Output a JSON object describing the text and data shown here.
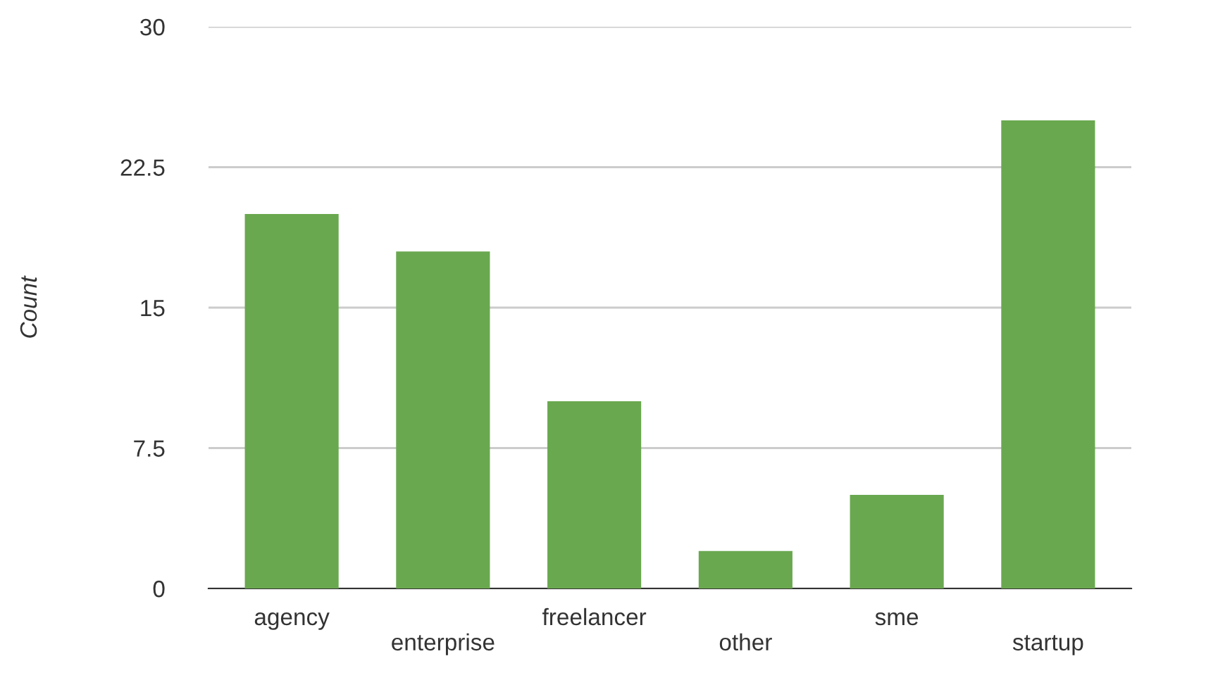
{
  "chart_data": {
    "type": "bar",
    "ylabel": "Count",
    "categories": [
      "agency",
      "enterprise",
      "freelancer",
      "other",
      "sme",
      "startup"
    ],
    "values": [
      20,
      18,
      10,
      2,
      5,
      25
    ],
    "color": "#6aa84f",
    "ylim": [
      0,
      30
    ],
    "yticks": [
      0,
      7.5,
      15,
      22.5,
      30
    ],
    "grid": "y"
  }
}
